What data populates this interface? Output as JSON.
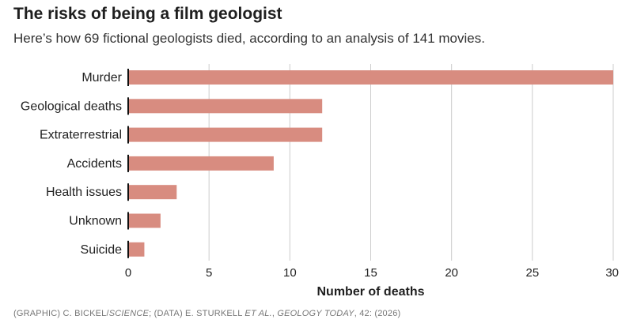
{
  "chart_data": {
    "type": "bar",
    "orientation": "horizontal",
    "title": "The risks of being a film geologist",
    "subtitle": "Here’s how 69 fictional geologists died, according to an analysis of 141 movies.",
    "categories": [
      "Murder",
      "Geological deaths",
      "Extraterrestrial",
      "Accidents",
      "Health issues",
      "Unknown",
      "Suicide"
    ],
    "values": [
      30,
      12,
      12,
      9,
      3,
      2,
      1
    ],
    "xlabel": "Number of deaths",
    "ylabel": "",
    "xlim": [
      0,
      30
    ],
    "xticks": [
      "0",
      "5",
      "10",
      "15",
      "20",
      "25",
      "30"
    ],
    "grid": "vertical",
    "bar_color": "#d88c80",
    "gridline_color": "#cccccc",
    "axis_color": "#111111"
  },
  "source": {
    "graphic_prefix": "(GRAPHIC) C. BICKEL/",
    "graphic_pub": "SCIENCE",
    "data_prefix": "; (DATA) E. STURKELL ",
    "data_etal": "ET AL.",
    "data_sep": ", ",
    "data_journal": "GEOLOGY TODAY",
    "data_suffix": ", 42: (2026)"
  }
}
